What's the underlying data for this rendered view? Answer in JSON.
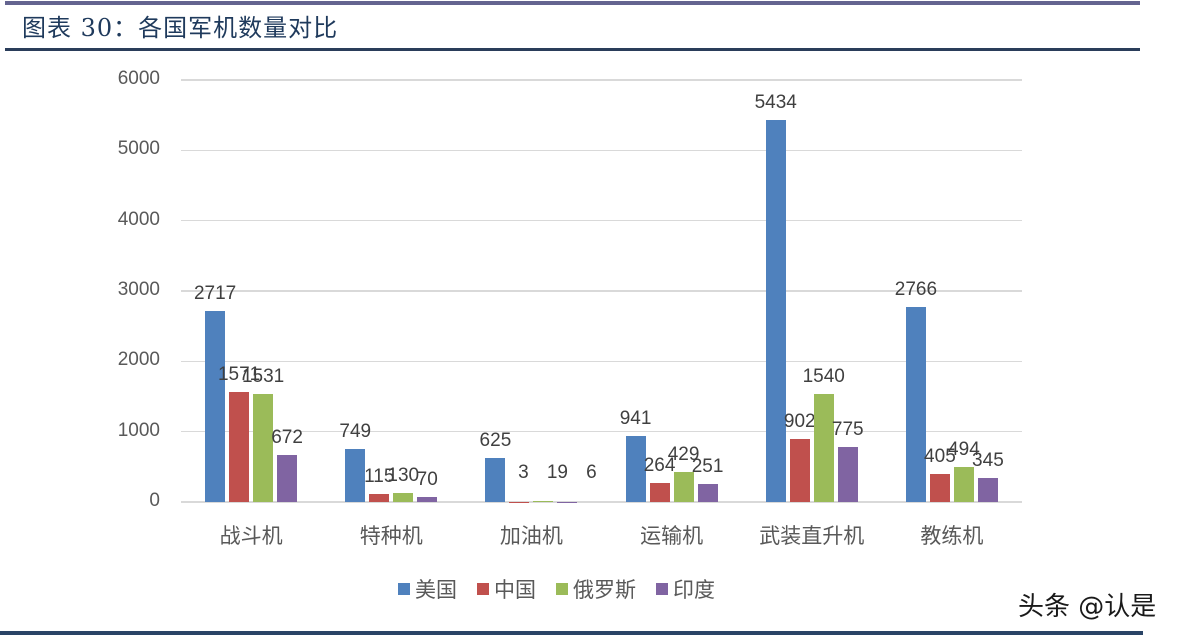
{
  "header": {
    "title": "图表 30：各国军机数量对比"
  },
  "watermark": "头条 @认是",
  "colors": {
    "美国": "#4f81bd",
    "中国": "#c0504d",
    "俄罗斯": "#9bbb59",
    "印度": "#8064a2",
    "title": "#1f3a5c",
    "rule_top": "#646490",
    "rule_mid": "#2a3d5a"
  },
  "legend": [
    {
      "label": "美国",
      "color": "#4f81bd"
    },
    {
      "label": "中国",
      "color": "#c0504d"
    },
    {
      "label": "俄罗斯",
      "color": "#9bbb59"
    },
    {
      "label": "印度",
      "color": "#8064a2"
    }
  ],
  "yticks": [
    "0",
    "1000",
    "2000",
    "3000",
    "4000",
    "5000",
    "6000"
  ],
  "chart_data": {
    "type": "bar",
    "title": "图表 30：各国军机数量对比",
    "xlabel": "",
    "ylabel": "",
    "ylim": [
      0,
      6000
    ],
    "yticks": [
      0,
      1000,
      2000,
      3000,
      4000,
      5000,
      6000
    ],
    "grid": true,
    "legend_position": "bottom",
    "categories": [
      "战斗机",
      "特种机",
      "加油机",
      "运输机",
      "武装直升机",
      "教练机"
    ],
    "series": [
      {
        "name": "美国",
        "color": "#4f81bd",
        "values": [
          2717,
          749,
          625,
          941,
          5434,
          2766
        ]
      },
      {
        "name": "中国",
        "color": "#c0504d",
        "values": [
          1571,
          115,
          3,
          264,
          902,
          405
        ]
      },
      {
        "name": "俄罗斯",
        "color": "#9bbb59",
        "values": [
          1531,
          130,
          19,
          429,
          1540,
          494
        ]
      },
      {
        "name": "印度",
        "color": "#8064a2",
        "values": [
          672,
          70,
          6,
          251,
          775,
          345
        ]
      }
    ]
  }
}
